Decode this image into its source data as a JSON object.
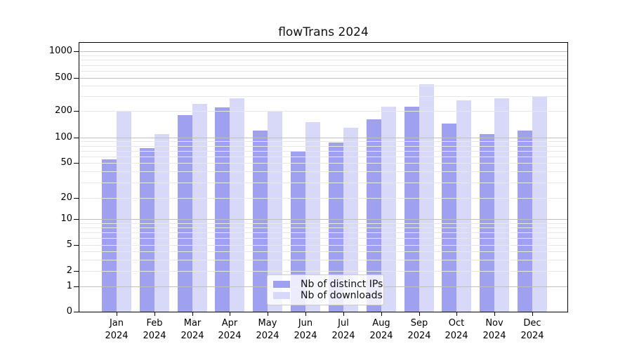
{
  "title": "flowTrans 2024",
  "chart_data": {
    "type": "bar",
    "title": "flowTrans 2024",
    "categories": [
      "Jan",
      "Feb",
      "Mar",
      "Apr",
      "May",
      "Jun",
      "Jul",
      "Aug",
      "Sep",
      "Oct",
      "Nov",
      "Dec"
    ],
    "x_tick_second_line": "2024",
    "series": [
      {
        "name": "Nb of distinct IPs",
        "color": "#a0a0f0",
        "values": [
          55,
          75,
          180,
          220,
          120,
          70,
          88,
          160,
          225,
          145,
          110,
          120
        ]
      },
      {
        "name": "Nb of downloads",
        "color": "#d8d8f8",
        "values": [
          200,
          110,
          245,
          285,
          200,
          150,
          130,
          225,
          420,
          270,
          285,
          295
        ]
      }
    ],
    "yscale": "symlog",
    "ylim": [
      0,
      1290
    ],
    "y_tick_values": [
      1000,
      500,
      200,
      100,
      50,
      20,
      10,
      5,
      2,
      1,
      0
    ],
    "y_tick_labels": [
      "1000",
      "500",
      "200",
      "100",
      "50",
      "20",
      "10",
      "5",
      "2",
      "1",
      "0"
    ],
    "grid": true,
    "legend_position": "lower center"
  },
  "colors": {
    "bar_dark": "#a0a0f0",
    "bar_light": "#d8d8f8",
    "grid_major": "#bfbfbf",
    "grid_minor": "#e8e8e8",
    "axis": "#000000",
    "background": "#ffffff"
  }
}
